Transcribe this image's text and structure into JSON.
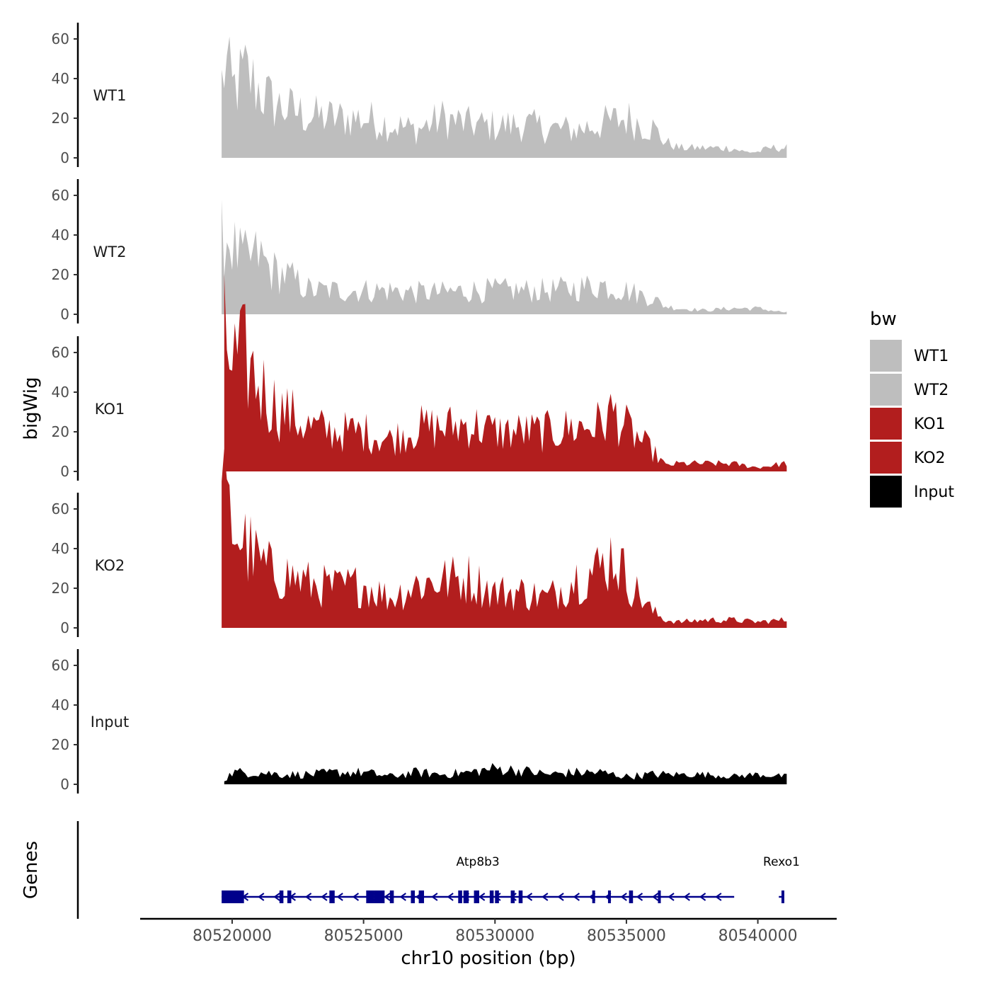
{
  "chart_data": {
    "type": "area",
    "ylabel": "bigWig",
    "xlabel": "chr10 position (bp)",
    "ylim": [
      0,
      70
    ],
    "xlim": [
      80516500,
      80543000
    ],
    "y_ticks": [
      0,
      20,
      40,
      60
    ],
    "x_ticks": [
      80520000,
      80525000,
      80530000,
      80535000,
      80540000
    ],
    "x_tick_labels": [
      "80520000",
      "80525000",
      "80530000",
      "80535000",
      "80540000"
    ],
    "x_start": 80519600,
    "x_step": 100,
    "legend": {
      "title": "bw",
      "position": "right",
      "entries": [
        {
          "label": "WT1",
          "color": "#bebebe"
        },
        {
          "label": "WT2",
          "color": "#bebebe"
        },
        {
          "label": "KO1",
          "color": "#b21e1e"
        },
        {
          "label": "KO2",
          "color": "#b21e1e"
        },
        {
          "label": "Input",
          "color": "#000000"
        }
      ]
    },
    "series": [
      {
        "name": "WT1",
        "color": "#bebebe",
        "keypoints": [
          [
            80519600,
            38
          ],
          [
            80519750,
            48
          ],
          [
            80520000,
            34
          ],
          [
            80520500,
            42
          ],
          [
            80521000,
            35
          ],
          [
            80521500,
            28
          ],
          [
            80522000,
            25
          ],
          [
            80523000,
            21
          ],
          [
            80524000,
            20
          ],
          [
            80525000,
            20
          ],
          [
            80526000,
            17
          ],
          [
            80527000,
            14
          ],
          [
            80528000,
            20
          ],
          [
            80529000,
            17
          ],
          [
            80530000,
            16
          ],
          [
            80531000,
            17
          ],
          [
            80532000,
            15
          ],
          [
            80533000,
            14
          ],
          [
            80534000,
            17
          ],
          [
            80535000,
            20
          ],
          [
            80536000,
            15
          ],
          [
            80536500,
            8
          ],
          [
            80537000,
            5
          ],
          [
            80538000,
            5
          ],
          [
            80539000,
            5
          ],
          [
            80539500,
            3
          ],
          [
            80540000,
            3
          ],
          [
            80540500,
            5
          ],
          [
            80541000,
            5
          ]
        ]
      },
      {
        "name": "WT2",
        "color": "#bebebe",
        "keypoints": [
          [
            80519600,
            38
          ],
          [
            80519800,
            40
          ],
          [
            80520200,
            30
          ],
          [
            80520600,
            27
          ],
          [
            80521000,
            30
          ],
          [
            80521500,
            22
          ],
          [
            80522000,
            20
          ],
          [
            80523000,
            12
          ],
          [
            80524000,
            12
          ],
          [
            80525000,
            12
          ],
          [
            80526000,
            12
          ],
          [
            80527000,
            11
          ],
          [
            80528000,
            11
          ],
          [
            80529000,
            12
          ],
          [
            80530000,
            12
          ],
          [
            80531000,
            12
          ],
          [
            80532000,
            12
          ],
          [
            80533000,
            13
          ],
          [
            80534000,
            15
          ],
          [
            80535000,
            12
          ],
          [
            80536000,
            8
          ],
          [
            80536500,
            4
          ],
          [
            80537000,
            3
          ],
          [
            80538000,
            2
          ],
          [
            80539000,
            3
          ],
          [
            80540000,
            3
          ],
          [
            80541000,
            1
          ]
        ]
      },
      {
        "name": "KO1",
        "color": "#b21e1e",
        "keypoints": [
          [
            80519700,
            66
          ],
          [
            80520000,
            55
          ],
          [
            80520500,
            56
          ],
          [
            80521000,
            45
          ],
          [
            80521500,
            35
          ],
          [
            80522000,
            30
          ],
          [
            80523000,
            22
          ],
          [
            80524000,
            20
          ],
          [
            80525000,
            20
          ],
          [
            80526000,
            16
          ],
          [
            80527000,
            22
          ],
          [
            80528000,
            22
          ],
          [
            80529000,
            24
          ],
          [
            80530000,
            20
          ],
          [
            80531000,
            20
          ],
          [
            80532000,
            20
          ],
          [
            80533000,
            22
          ],
          [
            80534000,
            24
          ],
          [
            80534500,
            30
          ],
          [
            80535000,
            22
          ],
          [
            80536000,
            10
          ],
          [
            80536500,
            3
          ],
          [
            80537000,
            4
          ],
          [
            80538000,
            4
          ],
          [
            80539000,
            4
          ],
          [
            80540000,
            2
          ],
          [
            80541000,
            4
          ]
        ]
      },
      {
        "name": "KO2",
        "color": "#b21e1e",
        "keypoints": [
          [
            80519600,
            64
          ],
          [
            80519900,
            55
          ],
          [
            80520500,
            42
          ],
          [
            80521000,
            33
          ],
          [
            80521500,
            28
          ],
          [
            80522000,
            27
          ],
          [
            80523000,
            22
          ],
          [
            80524000,
            20
          ],
          [
            80525000,
            22
          ],
          [
            80526000,
            15
          ],
          [
            80527000,
            22
          ],
          [
            80528000,
            24
          ],
          [
            80529000,
            25
          ],
          [
            80530000,
            18
          ],
          [
            80531000,
            18
          ],
          [
            80532000,
            15
          ],
          [
            80533000,
            25
          ],
          [
            80534000,
            30
          ],
          [
            80534500,
            38
          ],
          [
            80535000,
            25
          ],
          [
            80536000,
            8
          ],
          [
            80536500,
            4
          ],
          [
            80537000,
            3
          ],
          [
            80538000,
            4
          ],
          [
            80539000,
            4
          ],
          [
            80540000,
            3
          ],
          [
            80541000,
            4
          ]
        ]
      },
      {
        "name": "Input",
        "color": "#000000",
        "keypoints": [
          [
            80519700,
            2
          ],
          [
            80520000,
            6
          ],
          [
            80521000,
            6
          ],
          [
            80522000,
            5
          ],
          [
            80523000,
            5
          ],
          [
            80524000,
            6
          ],
          [
            80525000,
            6
          ],
          [
            80526000,
            4
          ],
          [
            80527000,
            6
          ],
          [
            80528000,
            5
          ],
          [
            80529000,
            6
          ],
          [
            80530000,
            8
          ],
          [
            80531000,
            7
          ],
          [
            80532000,
            5
          ],
          [
            80533000,
            6
          ],
          [
            80534000,
            6
          ],
          [
            80535000,
            4
          ],
          [
            80536000,
            5
          ],
          [
            80537000,
            5
          ],
          [
            80538000,
            5
          ],
          [
            80539000,
            4
          ],
          [
            80540000,
            5
          ],
          [
            80541000,
            4
          ]
        ]
      }
    ],
    "genes": {
      "title": "Genes",
      "color": "#00008b",
      "items": [
        {
          "name": "Atp8b3",
          "start": 80519600,
          "end": 80539100,
          "strand": "-",
          "exons": [
            [
              80519600,
              80520450
            ],
            [
              80521800,
              80521950
            ],
            [
              80522100,
              80522250
            ],
            [
              80523700,
              80523900
            ],
            [
              80525100,
              80525400
            ],
            [
              80525400,
              80525800
            ],
            [
              80526000,
              80526150
            ],
            [
              80526800,
              80526950
            ],
            [
              80527100,
              80527300
            ],
            [
              80528600,
              80528750
            ],
            [
              80528800,
              80529000
            ],
            [
              80529200,
              80529400
            ],
            [
              80529800,
              80529950
            ],
            [
              80530000,
              80530150
            ],
            [
              80530600,
              80530750
            ],
            [
              80530900,
              80531050
            ],
            [
              80533700,
              80533800
            ],
            [
              80534300,
              80534400
            ],
            [
              80535100,
              80535250
            ],
            [
              80536200,
              80536300
            ]
          ]
        },
        {
          "name": "Rexo1",
          "start": 80540800,
          "end": 80541000,
          "strand": "-",
          "exons": [
            [
              80540900,
              80541000
            ]
          ]
        }
      ]
    }
  }
}
